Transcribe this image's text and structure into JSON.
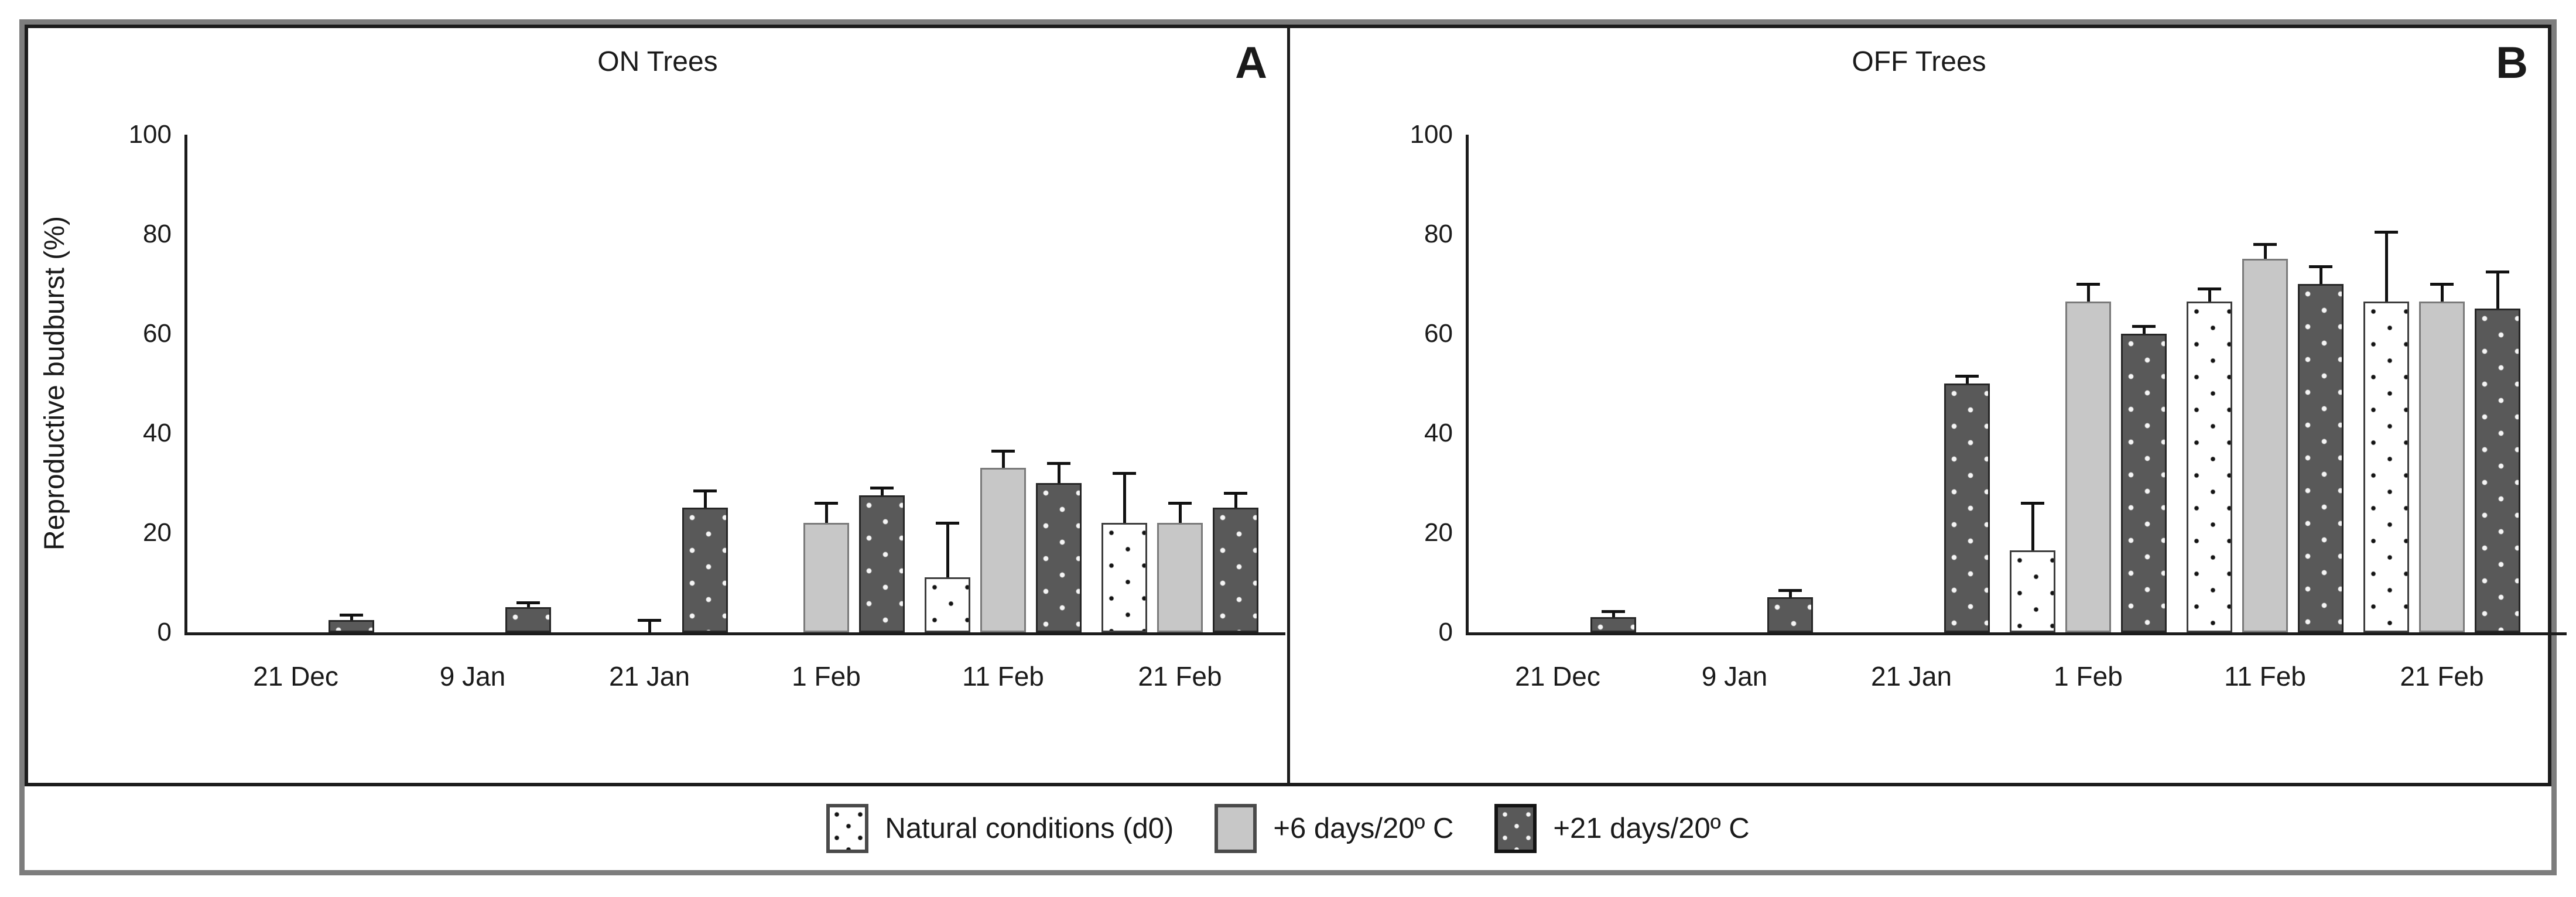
{
  "figure": {
    "ylabel": "Reproductive budburst (%)",
    "legend": [
      {
        "key": "d0",
        "label": "Natural conditions (d0)",
        "swatch": "white-dotted"
      },
      {
        "key": "d6",
        "label": "+6 days/20º C",
        "swatch": "gray-solid"
      },
      {
        "key": "d21",
        "label": "+21 days/20º C",
        "swatch": "dark-dotted"
      }
    ],
    "colors": {
      "bar_gray": "#c7c7c7",
      "bar_dark": "#595959",
      "bar_white": "#ffffff",
      "axis": "#1c1c1c",
      "frame_gray": "#7d7d7d"
    }
  },
  "chart_data": [
    {
      "type": "bar",
      "panel": "A",
      "letter": "A",
      "title": "ON Trees",
      "ylabel": "Reproductive budburst (%)",
      "ylim": [
        0,
        100
      ],
      "yticks": [
        0,
        20,
        40,
        60,
        80,
        100
      ],
      "grid": false,
      "legend_position": "bottom",
      "categories": [
        "21 Dec",
        "9 Jan",
        "21 Jan",
        "1 Feb",
        "11 Feb",
        "21 Feb"
      ],
      "series": [
        {
          "name": "Natural conditions (d0)",
          "values": [
            null,
            null,
            null,
            null,
            11,
            22
          ],
          "errors": [
            null,
            null,
            null,
            null,
            11,
            10
          ]
        },
        {
          "name": "+6 days/20º C",
          "values": [
            null,
            null,
            0,
            22,
            33,
            22
          ],
          "errors": [
            null,
            null,
            2.5,
            4,
            3.5,
            4
          ]
        },
        {
          "name": "+21 days/20º C",
          "values": [
            2.5,
            5,
            25,
            27.5,
            30,
            25
          ],
          "errors": [
            1,
            1,
            3.5,
            1.5,
            4,
            3
          ]
        }
      ]
    },
    {
      "type": "bar",
      "panel": "B",
      "letter": "B",
      "title": "OFF Trees",
      "ylabel": "",
      "ylim": [
        0,
        100
      ],
      "yticks": [
        0,
        20,
        40,
        60,
        80,
        100
      ],
      "grid": false,
      "legend_position": "bottom",
      "categories": [
        "21 Dec",
        "9 Jan",
        "21 Jan",
        "1 Feb",
        "11 Feb",
        "21 Feb"
      ],
      "series": [
        {
          "name": "Natural conditions (d0)",
          "values": [
            null,
            null,
            null,
            16.5,
            66.5,
            66.5
          ],
          "errors": [
            null,
            null,
            null,
            9.5,
            2.5,
            14
          ]
        },
        {
          "name": "+6 days/20º C",
          "values": [
            null,
            null,
            null,
            66.5,
            75,
            66.5
          ],
          "errors": [
            null,
            null,
            null,
            3.5,
            3,
            3.5
          ]
        },
        {
          "name": "+21 days/20º C",
          "values": [
            3,
            7,
            50,
            60,
            70,
            65
          ],
          "errors": [
            1.2,
            1.5,
            1.5,
            1.5,
            3.5,
            7.5
          ]
        }
      ]
    }
  ]
}
